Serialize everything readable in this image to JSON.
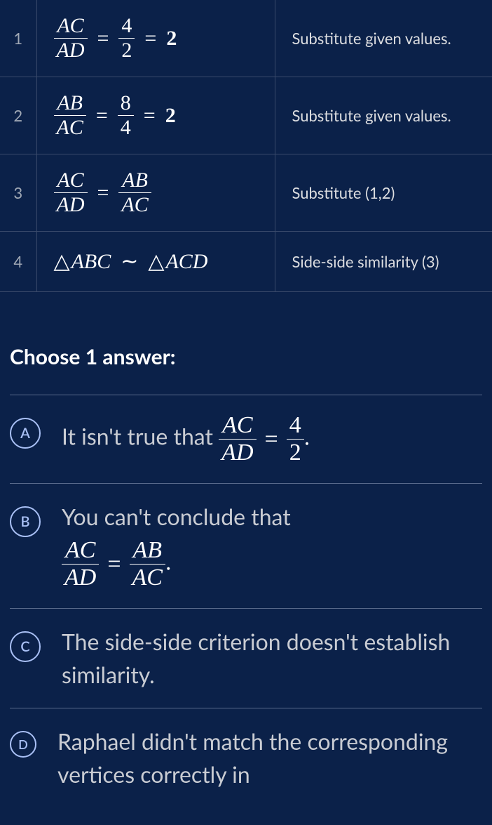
{
  "colors": {
    "background": "#0b2149",
    "row_border": "#3a4a6b",
    "text": "#dcdde0",
    "muted": "#a0a8b5",
    "math_color": "#ffffff",
    "option_border": "#a9c0f5",
    "hr": "#5a6b8c"
  },
  "typography": {
    "body_font": "Lato, Helvetica Neue, Arial, sans-serif",
    "math_font": "Times New Roman, serif",
    "step_num_fontsize": 22,
    "reason_fontsize": 22,
    "math_fontsize": 30,
    "prompt_fontsize": 30,
    "option_text_fontsize": 32,
    "option_math_fontsize": 34
  },
  "proof": {
    "rows": [
      {
        "n": "1",
        "reason": "Substitute given values.",
        "statement": {
          "type": "frac_chain_bold_result",
          "f1": {
            "num": "AC",
            "den": "AD"
          },
          "f2": {
            "num": "4",
            "den": "2",
            "upright": true
          },
          "result": "2"
        }
      },
      {
        "n": "2",
        "reason": "Substitute given values.",
        "statement": {
          "type": "frac_chain_bold_result",
          "f1": {
            "num": "AB",
            "den": "AC"
          },
          "f2": {
            "num": "8",
            "den": "4",
            "upright": true
          },
          "result": "2"
        }
      },
      {
        "n": "3",
        "reason": "Substitute (1,2)",
        "statement": {
          "type": "frac_eq_frac",
          "f1": {
            "num": "AC",
            "den": "AD"
          },
          "f2": {
            "num": "AB",
            "den": "AC"
          }
        }
      },
      {
        "n": "4",
        "reason": "Side-side similarity (3)",
        "statement": {
          "type": "similar_triangles",
          "t1": "ABC",
          "t2": "ACD"
        }
      }
    ]
  },
  "question": {
    "prompt": "Choose 1 answer:",
    "options": [
      {
        "letter": "A",
        "text_before": "It isn't true that ",
        "math": {
          "type": "frac_eq_frac",
          "f1": {
            "num": "AC",
            "den": "AD"
          },
          "f2": {
            "num": "4",
            "den": "2",
            "upright": true
          }
        },
        "text_after": "."
      },
      {
        "letter": "B",
        "text_before": "You can't conclude that",
        "math_block": {
          "type": "frac_eq_frac",
          "f1": {
            "num": "AC",
            "den": "AD"
          },
          "f2": {
            "num": "AB",
            "den": "AC"
          }
        },
        "text_after_block": "."
      },
      {
        "letter": "C",
        "text": "The side-side criterion doesn't establish similarity."
      },
      {
        "letter": "D",
        "text": "Raphael didn't match the corresponding vertices correctly in"
      }
    ]
  }
}
